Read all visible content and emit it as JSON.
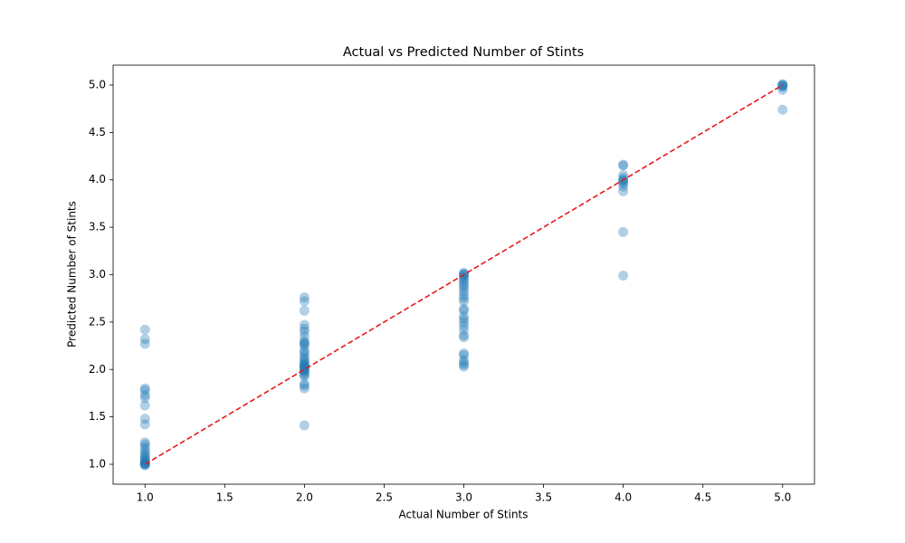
{
  "chart_data": {
    "type": "scatter",
    "title": "Actual vs Predicted Number of Stints",
    "xlabel": "Actual Number of Stints",
    "ylabel": "Predicted Number of Stints",
    "color": "#1f77b4",
    "alpha": 0.35,
    "x": [
      1,
      1,
      1,
      1,
      1,
      1,
      1,
      1,
      1,
      1,
      1,
      1,
      1,
      1,
      1,
      1,
      1,
      1,
      1,
      1,
      1,
      1,
      1,
      1,
      1,
      1,
      2,
      2,
      2,
      2,
      2,
      2,
      2,
      2,
      2,
      2,
      2,
      2,
      2,
      2,
      2,
      2,
      2,
      2,
      2,
      2,
      2,
      2,
      2,
      2,
      2,
      2,
      2,
      2,
      2,
      2,
      2,
      2,
      2,
      3,
      3,
      3,
      3,
      3,
      3,
      3,
      3,
      3,
      3,
      3,
      3,
      3,
      3,
      3,
      3,
      3,
      3,
      3,
      3,
      3,
      3,
      3,
      3,
      3,
      3,
      3,
      3,
      3,
      4,
      4,
      4,
      4,
      4,
      4,
      4,
      4,
      4,
      4,
      4,
      4,
      5,
      5,
      5,
      5,
      5,
      5,
      5
    ],
    "values": [
      2.42,
      2.32,
      2.27,
      1.8,
      1.78,
      1.73,
      1.7,
      1.62,
      1.48,
      1.42,
      1.23,
      1.21,
      1.18,
      1.15,
      1.12,
      1.1,
      1.08,
      1.06,
      1.05,
      1.03,
      1.02,
      1.01,
      1.0,
      1.0,
      1.0,
      0.99,
      2.76,
      2.72,
      2.62,
      2.47,
      2.43,
      2.4,
      2.35,
      2.3,
      2.28,
      2.27,
      2.25,
      2.2,
      2.18,
      2.15,
      2.12,
      2.1,
      2.08,
      2.06,
      2.05,
      2.04,
      2.03,
      2.02,
      2.01,
      2.0,
      1.99,
      1.98,
      1.96,
      1.94,
      1.93,
      1.85,
      1.83,
      1.8,
      1.41,
      3.02,
      3.01,
      3.0,
      2.99,
      2.97,
      2.95,
      2.93,
      2.9,
      2.88,
      2.85,
      2.82,
      2.78,
      2.75,
      2.72,
      2.64,
      2.62,
      2.56,
      2.53,
      2.5,
      2.46,
      2.42,
      2.36,
      2.34,
      2.17,
      2.15,
      2.1,
      2.07,
      2.05,
      2.03,
      4.16,
      4.15,
      4.05,
      4.02,
      4.0,
      3.99,
      3.98,
      3.96,
      3.93,
      3.88,
      3.45,
      2.99,
      5.01,
      5.0,
      5.0,
      4.99,
      4.98,
      4.95,
      4.74
    ],
    "reference_line": {
      "x": [
        1,
        5
      ],
      "y": [
        1,
        5
      ],
      "color": "#e8191a",
      "dashed": true
    },
    "xlim": [
      0.8,
      5.2
    ],
    "ylim": [
      0.79,
      5.21
    ],
    "xticks": [
      {
        "value": 1,
        "label": "1.0"
      },
      {
        "value": 1.5,
        "label": "1.5"
      },
      {
        "value": 2,
        "label": "2.0"
      },
      {
        "value": 2.5,
        "label": "2.5"
      },
      {
        "value": 3,
        "label": "3.0"
      },
      {
        "value": 3.5,
        "label": "3.5"
      },
      {
        "value": 4,
        "label": "4.0"
      },
      {
        "value": 4.5,
        "label": "4.5"
      },
      {
        "value": 5,
        "label": "5.0"
      }
    ],
    "yticks": [
      {
        "value": 1,
        "label": "1.0"
      },
      {
        "value": 1.5,
        "label": "1.5"
      },
      {
        "value": 2,
        "label": "2.0"
      },
      {
        "value": 2.5,
        "label": "2.5"
      },
      {
        "value": 3,
        "label": "3.0"
      },
      {
        "value": 3.5,
        "label": "3.5"
      },
      {
        "value": 4,
        "label": "4.0"
      },
      {
        "value": 4.5,
        "label": "4.5"
      },
      {
        "value": 5,
        "label": "5.0"
      }
    ],
    "grid": false
  }
}
